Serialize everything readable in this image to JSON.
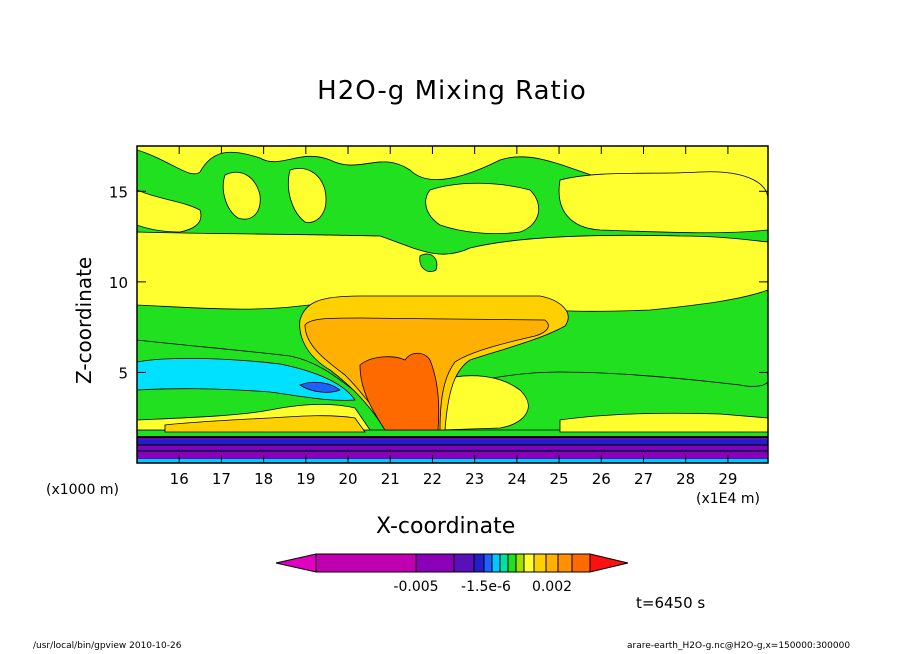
{
  "chart_data": {
    "type": "heatmap",
    "title": "H2O-g Mixing Ratio",
    "xlabel": "X-coordinate",
    "ylabel": "Z-coordinate",
    "x_unit_note": "(x1E4 m)",
    "y_unit_note": "(x1000 m)",
    "x_ticks": [
      "16",
      "17",
      "18",
      "19",
      "20",
      "21",
      "22",
      "23",
      "24",
      "25",
      "26",
      "27",
      "28",
      "29"
    ],
    "y_ticks": [
      "5",
      "10",
      "15"
    ],
    "xlim": [
      15.0,
      29.95
    ],
    "ylim": [
      0,
      17.5
    ],
    "colorbar_labels": [
      "-0.005",
      "-1.5e-6",
      "0.002"
    ],
    "colorbar_colors": [
      "#e000c0",
      "#c000b0",
      "#8a00b8",
      "#5a10b8",
      "#2020c8",
      "#2060ff",
      "#00c8ff",
      "#00e0a0",
      "#20e020",
      "#a0e000",
      "#ffff30",
      "#ffd000",
      "#ffb000",
      "#ff9000",
      "#ff6a00",
      "#ff1010"
    ],
    "time_label": "t=6450 s",
    "footer_left": "/usr/local/bin/gpview   2010-10-26",
    "footer_right": "arare-earth_H2O-g.nc@H2O-g,x=150000:300000"
  }
}
